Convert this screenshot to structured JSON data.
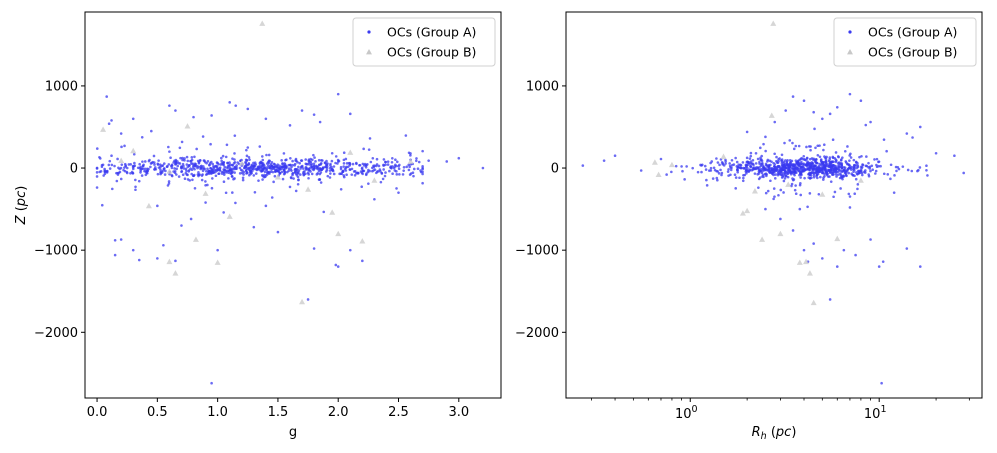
{
  "chart_data": [
    {
      "type": "scatter",
      "xlabel": "g",
      "ylabel": "Z (pc)",
      "xscale": "linear",
      "xlim": [
        -0.1,
        3.35
      ],
      "ylim": [
        -2800,
        1900
      ],
      "xticks": [
        {
          "v": 0.0,
          "label": "0.0"
        },
        {
          "v": 0.5,
          "label": "0.5"
        },
        {
          "v": 1.0,
          "label": "1.0"
        },
        {
          "v": 1.5,
          "label": "1.5"
        },
        {
          "v": 2.0,
          "label": "2.0"
        },
        {
          "v": 2.5,
          "label": "2.5"
        },
        {
          "v": 3.0,
          "label": "3.0"
        }
      ],
      "yticks": [
        {
          "v": 1000,
          "label": "1000"
        },
        {
          "v": 0,
          "label": "0"
        },
        {
          "v": -1000,
          "label": "−1000"
        },
        {
          "v": -2000,
          "label": "−2000"
        }
      ],
      "legend_position": "top-right",
      "series": [
        {
          "name": "OCs (Group A)",
          "marker": "circle",
          "color": "#3a3af0",
          "points": [
            [
              0.08,
              870
            ],
            [
              0.1,
              540
            ],
            [
              0.12,
              580
            ],
            [
              0.2,
              420
            ],
            [
              0.3,
              600
            ],
            [
              0.45,
              450
            ],
            [
              0.6,
              760
            ],
            [
              0.65,
              700
            ],
            [
              0.8,
              620
            ],
            [
              0.95,
              640
            ],
            [
              1.1,
              800
            ],
            [
              1.15,
              760
            ],
            [
              1.25,
              720
            ],
            [
              1.4,
              600
            ],
            [
              1.6,
              520
            ],
            [
              1.7,
              700
            ],
            [
              1.8,
              650
            ],
            [
              1.85,
              560
            ],
            [
              2.0,
              900
            ],
            [
              2.1,
              660
            ],
            [
              0.15,
              -880
            ],
            [
              0.2,
              -870
            ],
            [
              0.3,
              -1000
            ],
            [
              0.35,
              -1120
            ],
            [
              0.5,
              -1100
            ],
            [
              0.55,
              -940
            ],
            [
              0.65,
              -1130
            ],
            [
              0.7,
              -700
            ],
            [
              0.78,
              -620
            ],
            [
              0.95,
              -2620
            ],
            [
              1.0,
              -1000
            ],
            [
              1.3,
              -720
            ],
            [
              1.5,
              -780
            ],
            [
              1.75,
              -1600
            ],
            [
              1.8,
              -980
            ],
            [
              1.98,
              -1180
            ],
            [
              2.0,
              -1200
            ],
            [
              2.1,
              -1000
            ],
            [
              2.2,
              -1130
            ],
            [
              0.15,
              -1060
            ],
            [
              0.5,
              -460
            ],
            [
              0.9,
              -420
            ],
            [
              1.05,
              -540
            ],
            [
              1.4,
              -460
            ],
            [
              2.3,
              -380
            ],
            [
              2.5,
              -300
            ],
            [
              2.6,
              100
            ],
            [
              2.75,
              90
            ],
            [
              2.9,
              80
            ],
            [
              3.0,
              120
            ],
            [
              3.2,
              0
            ],
            [
              0.05,
              40
            ],
            [
              0.25,
              -60
            ],
            [
              0.4,
              80
            ],
            [
              0.55,
              -30
            ],
            [
              0.7,
              20
            ],
            [
              0.85,
              -80
            ],
            [
              1.0,
              60
            ],
            [
              1.1,
              -40
            ],
            [
              1.2,
              30
            ],
            [
              1.3,
              -90
            ],
            [
              1.45,
              70
            ],
            [
              1.55,
              -20
            ],
            [
              1.65,
              110
            ],
            [
              1.75,
              -60
            ],
            [
              1.9,
              40
            ],
            [
              2.05,
              -110
            ],
            [
              2.15,
              60
            ],
            [
              2.35,
              -40
            ],
            [
              2.45,
              20
            ],
            [
              0.12,
              150
            ],
            [
              0.35,
              -160
            ],
            [
              0.6,
              200
            ],
            [
              0.9,
              -210
            ],
            [
              1.25,
              250
            ],
            [
              1.6,
              -230
            ],
            [
              1.95,
              180
            ],
            [
              2.25,
              -190
            ]
          ],
          "generated": {
            "count": 900,
            "x_range": [
              0.0,
              2.7
            ],
            "x_peak": 1.3,
            "y_sigma": 55,
            "y_tail": 180
          }
        },
        {
          "name": "OCs (Group B)",
          "marker": "triangle",
          "color": "#c8c8c8",
          "points": [
            [
              1.37,
              1760
            ],
            [
              0.05,
              470
            ],
            [
              0.75,
              510
            ],
            [
              0.82,
              -870
            ],
            [
              0.6,
              -1140
            ],
            [
              0.65,
              -1280
            ],
            [
              0.43,
              -460
            ],
            [
              1.0,
              -1150
            ],
            [
              1.1,
              -590
            ],
            [
              1.7,
              -1630
            ],
            [
              1.95,
              -540
            ],
            [
              2.0,
              -800
            ],
            [
              2.2,
              -890
            ],
            [
              0.3,
              210
            ],
            [
              0.6,
              -40
            ],
            [
              1.2,
              60
            ],
            [
              1.5,
              -110
            ],
            [
              2.1,
              190
            ],
            [
              2.6,
              80
            ],
            [
              0.9,
              -310
            ],
            [
              1.75,
              -260
            ],
            [
              2.3,
              -150
            ],
            [
              0.2,
              90
            ]
          ]
        }
      ]
    },
    {
      "type": "scatter",
      "xlabel": "R_h (pc)",
      "ylabel": "",
      "xscale": "log",
      "xlim": [
        0.22,
        35
      ],
      "ylim": [
        -2800,
        1900
      ],
      "xticks": [
        {
          "v": 1,
          "base": "10",
          "exp": "0"
        },
        {
          "v": 10,
          "base": "10",
          "exp": "1"
        }
      ],
      "yticks": [
        {
          "v": 1000,
          "label": "1000"
        },
        {
          "v": 0,
          "label": "0"
        },
        {
          "v": -1000,
          "label": "−1000"
        },
        {
          "v": -2000,
          "label": "−2000"
        }
      ],
      "legend_position": "top-right",
      "series": [
        {
          "name": "OCs (Group A)",
          "marker": "circle",
          "color": "#3a3af0",
          "points": [
            [
              0.27,
              30
            ],
            [
              0.35,
              90
            ],
            [
              0.4,
              150
            ],
            [
              0.55,
              -30
            ],
            [
              0.7,
              110
            ],
            [
              0.75,
              -80
            ],
            [
              0.9,
              20
            ],
            [
              1.1,
              -50
            ],
            [
              1.3,
              80
            ],
            [
              2.0,
              440
            ],
            [
              2.5,
              380
            ],
            [
              2.8,
              560
            ],
            [
              3.2,
              700
            ],
            [
              3.5,
              870
            ],
            [
              4.0,
              820
            ],
            [
              4.5,
              680
            ],
            [
              5.0,
              600
            ],
            [
              5.5,
              660
            ],
            [
              6.0,
              740
            ],
            [
              7.0,
              900
            ],
            [
              8.0,
              820
            ],
            [
              9.0,
              560
            ],
            [
              14.0,
              420
            ],
            [
              16.5,
              500
            ],
            [
              20.0,
              180
            ],
            [
              25.0,
              150
            ],
            [
              28.0,
              -60
            ],
            [
              2.5,
              -500
            ],
            [
              3.0,
              -620
            ],
            [
              3.5,
              -760
            ],
            [
              4.0,
              -1000
            ],
            [
              4.2,
              -1140
            ],
            [
              4.5,
              -920
            ],
            [
              5.0,
              -1100
            ],
            [
              5.5,
              -1600
            ],
            [
              6.0,
              -1200
            ],
            [
              6.5,
              -1000
            ],
            [
              7.5,
              -1060
            ],
            [
              9.0,
              -870
            ],
            [
              10.0,
              -1200
            ],
            [
              10.5,
              -1140
            ],
            [
              14.0,
              -980
            ],
            [
              16.5,
              -1200
            ],
            [
              10.3,
              -2620
            ],
            [
              3.8,
              -500
            ],
            [
              7.0,
              -480
            ],
            [
              12.0,
              -300
            ],
            [
              18.0,
              -90
            ]
          ],
          "generated": {
            "count": 900,
            "logx_range": [
              -0.1,
              1.25
            ],
            "logx_peak": 0.58,
            "logx_sigma": 0.22,
            "y_sigma": 55,
            "y_tail": 180
          }
        },
        {
          "name": "OCs (Group B)",
          "marker": "triangle",
          "color": "#c8c8c8",
          "points": [
            [
              2.75,
              1760
            ],
            [
              2.7,
              640
            ],
            [
              0.65,
              70
            ],
            [
              0.68,
              -80
            ],
            [
              0.8,
              40
            ],
            [
              1.9,
              -550
            ],
            [
              2.0,
              -520
            ],
            [
              2.4,
              -870
            ],
            [
              3.0,
              -800
            ],
            [
              3.8,
              -1150
            ],
            [
              4.1,
              -1140
            ],
            [
              4.3,
              -1280
            ],
            [
              4.5,
              -1640
            ],
            [
              6.0,
              -860
            ],
            [
              2.2,
              -280
            ],
            [
              5.0,
              -320
            ],
            [
              1.5,
              140
            ],
            [
              3.3,
              -200
            ],
            [
              8.0,
              -150
            ]
          ]
        }
      ]
    }
  ]
}
